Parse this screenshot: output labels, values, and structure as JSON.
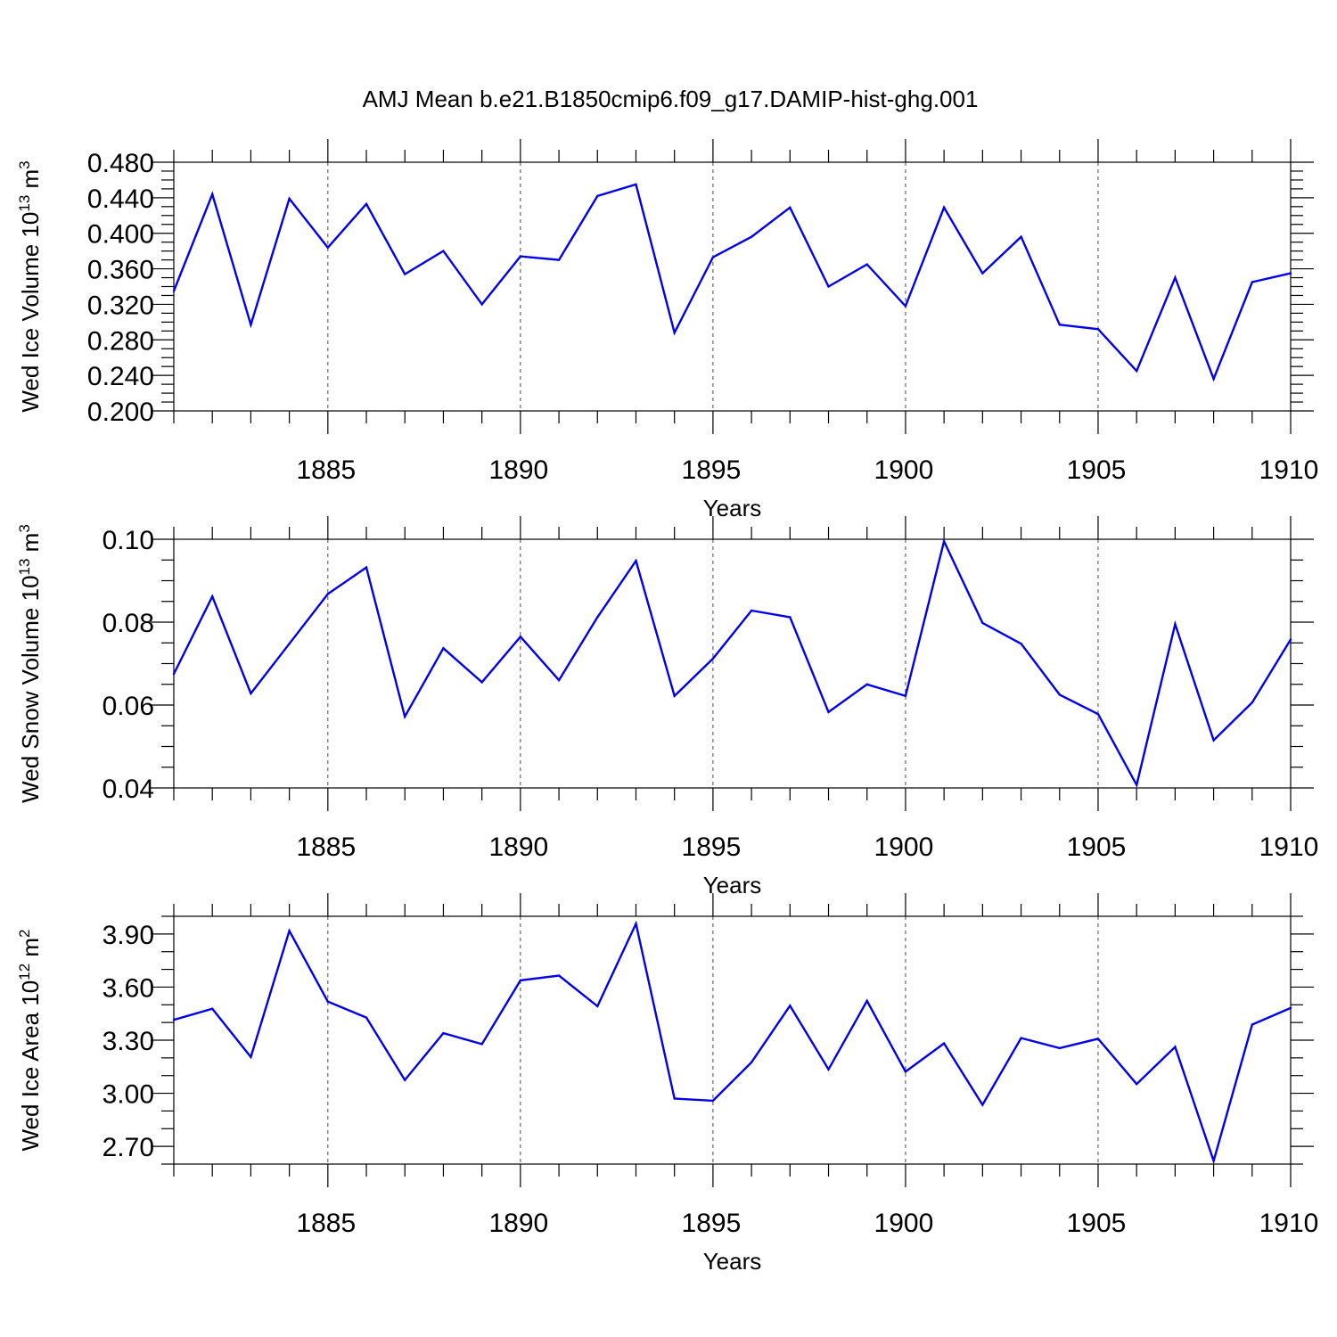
{
  "figure": {
    "title": "AMJ Mean b.e21.B1850cmip6.f09_g17.DAMIP-hist-ghg.001"
  },
  "colors": {
    "series": "#0000ee",
    "axes": "#000000"
  },
  "chart_data": [
    {
      "type": "line",
      "ylabel_main": "Wed Ice Volume 10",
      "ylabel_exp": "13",
      "ylabel_unit": " m",
      "ylabel_unit_exp": "3",
      "xlabel": "Years",
      "xlim": [
        1881,
        1910
      ],
      "ylim": [
        0.2,
        0.48
      ],
      "y_ticks": [
        "0.200",
        "0.240",
        "0.280",
        "0.320",
        "0.360",
        "0.400",
        "0.440",
        "0.480"
      ],
      "y_tick_values": [
        0.2,
        0.24,
        0.28,
        0.32,
        0.36,
        0.4,
        0.44,
        0.48
      ],
      "y_minor_step": 0.01,
      "x_ticks": [
        "1885",
        "1890",
        "1895",
        "1900",
        "1905",
        "1910"
      ],
      "x_tick_values": [
        1885,
        1890,
        1895,
        1900,
        1905,
        1910
      ],
      "grid_x": true,
      "x": [
        1881,
        1882,
        1883,
        1884,
        1885,
        1886,
        1887,
        1888,
        1889,
        1890,
        1891,
        1892,
        1893,
        1894,
        1895,
        1896,
        1897,
        1898,
        1899,
        1900,
        1901,
        1902,
        1903,
        1904,
        1905,
        1906,
        1907,
        1908,
        1909,
        1910
      ],
      "values": [
        0.335,
        0.444,
        0.297,
        0.439,
        0.384,
        0.433,
        0.354,
        0.38,
        0.32,
        0.374,
        0.37,
        0.442,
        0.455,
        0.288,
        0.373,
        0.396,
        0.429,
        0.34,
        0.365,
        0.318,
        0.429,
        0.355,
        0.396,
        0.297,
        0.292,
        0.245,
        0.35,
        0.236,
        0.345,
        0.355
      ]
    },
    {
      "type": "line",
      "ylabel_main": "Wed Snow Volume 10",
      "ylabel_exp": "13",
      "ylabel_unit": " m",
      "ylabel_unit_exp": "3",
      "xlabel": "Years",
      "xlim": [
        1881,
        1910
      ],
      "ylim": [
        0.04,
        0.1
      ],
      "y_ticks": [
        "0.04",
        "0.06",
        "0.08",
        "0.10"
      ],
      "y_tick_values": [
        0.04,
        0.06,
        0.08,
        0.1
      ],
      "y_minor_step": 0.005,
      "x_ticks": [
        "1885",
        "1890",
        "1895",
        "1900",
        "1905",
        "1910"
      ],
      "x_tick_values": [
        1885,
        1890,
        1895,
        1900,
        1905,
        1910
      ],
      "grid_x": true,
      "x": [
        1881,
        1882,
        1883,
        1884,
        1885,
        1886,
        1887,
        1888,
        1889,
        1890,
        1891,
        1892,
        1893,
        1894,
        1895,
        1896,
        1897,
        1898,
        1899,
        1900,
        1901,
        1902,
        1903,
        1904,
        1905,
        1906,
        1907,
        1908,
        1909,
        1910
      ],
      "values": [
        0.0675,
        0.0862,
        0.0628,
        0.0748,
        0.0868,
        0.0932,
        0.0572,
        0.0737,
        0.0655,
        0.0765,
        0.066,
        0.0812,
        0.0948,
        0.0622,
        0.0712,
        0.0828,
        0.0812,
        0.0583,
        0.065,
        0.0622,
        0.0995,
        0.0798,
        0.0748,
        0.0625,
        0.0578,
        0.0407,
        0.0795,
        0.0515,
        0.0606,
        0.0758
      ]
    },
    {
      "type": "line",
      "ylabel_main": "Wed Ice Area 10",
      "ylabel_exp": "12",
      "ylabel_unit": " m",
      "ylabel_unit_exp": "2",
      "xlabel": "Years",
      "xlim": [
        1881,
        1910
      ],
      "ylim": [
        2.6,
        4.0
      ],
      "y_ticks": [
        "2.70",
        "3.00",
        "3.30",
        "3.60",
        "3.90"
      ],
      "y_tick_values": [
        2.7,
        3.0,
        3.3,
        3.6,
        3.9
      ],
      "y_minor_step": 0.1,
      "x_ticks": [
        "1885",
        "1890",
        "1895",
        "1900",
        "1905",
        "1910"
      ],
      "x_tick_values": [
        1885,
        1890,
        1895,
        1900,
        1905,
        1910
      ],
      "grid_x": true,
      "x": [
        1881,
        1882,
        1883,
        1884,
        1885,
        1886,
        1887,
        1888,
        1889,
        1890,
        1891,
        1892,
        1893,
        1894,
        1895,
        1896,
        1897,
        1898,
        1899,
        1900,
        1901,
        1902,
        1903,
        1904,
        1905,
        1906,
        1907,
        1908,
        1909,
        1910
      ],
      "values": [
        3.415,
        3.478,
        3.205,
        3.918,
        3.518,
        3.428,
        3.075,
        3.34,
        3.278,
        3.638,
        3.665,
        3.492,
        3.958,
        2.97,
        2.958,
        3.175,
        3.495,
        3.135,
        3.522,
        3.122,
        3.282,
        2.935,
        3.312,
        3.255,
        3.308,
        3.052,
        3.262,
        2.618,
        3.388,
        3.482
      ]
    }
  ]
}
